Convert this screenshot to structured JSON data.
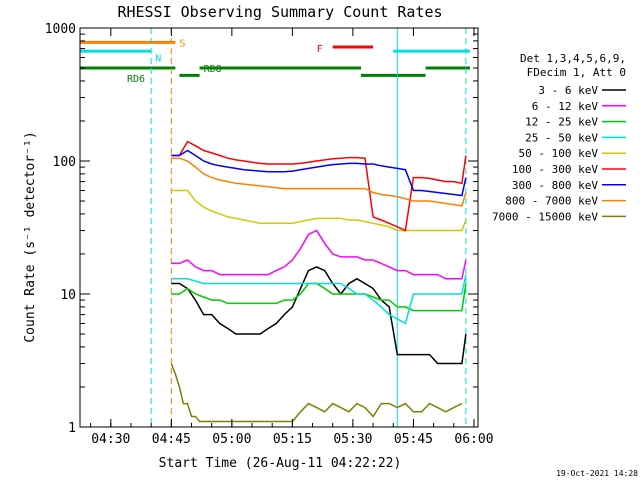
{
  "chart_data": {
    "type": "line",
    "title": "RHESSI Observing Summary Count Rates",
    "xlabel": "Start Time (26-Aug-11 04:22:22)",
    "ylabel": "Count Rate (s⁻¹ detector⁻¹)",
    "y_scale": "log",
    "ylim": [
      1,
      1000
    ],
    "xlim": [
      "04:22:22",
      "06:01:00"
    ],
    "x_ticks": [
      "04:30",
      "04:45",
      "05:00",
      "05:15",
      "05:30",
      "05:45",
      "06:00"
    ],
    "y_ticks": [
      "1",
      "10",
      "100",
      "1000"
    ],
    "legend_header": [
      "Det 1,3,4,5,6,9,",
      "FDecim 1, Att 0"
    ],
    "legend_position": "right",
    "series": [
      {
        "name": "3 - 6 keV",
        "color": "#000000",
        "x": [
          "04:45",
          "04:47",
          "04:49",
          "04:51",
          "04:53",
          "04:55",
          "04:57",
          "04:59",
          "05:01",
          "05:03",
          "05:05",
          "05:07",
          "05:09",
          "05:11",
          "05:13",
          "05:15",
          "05:17",
          "05:19",
          "05:21",
          "05:23",
          "05:25",
          "05:27",
          "05:29",
          "05:31",
          "05:33",
          "05:35",
          "05:37",
          "05:39",
          "05:41",
          "05:43",
          "05:45",
          "05:47",
          "05:49",
          "05:51",
          "05:53",
          "05:55",
          "05:57",
          "05:58"
        ],
        "y": [
          12,
          12,
          11,
          9,
          7,
          7,
          6,
          5.5,
          5,
          5,
          5,
          5,
          5.5,
          6,
          7,
          8,
          11,
          15,
          16,
          15,
          12,
          10,
          12,
          13,
          12,
          11,
          9,
          8,
          3.5,
          3.5,
          3.5,
          3.5,
          3.5,
          3,
          3,
          3,
          3,
          5
        ]
      },
      {
        "name": "6 - 12 keV",
        "color": "#ff00ff",
        "x": [
          "04:45",
          "04:47",
          "04:49",
          "04:51",
          "04:53",
          "04:55",
          "04:57",
          "04:59",
          "05:01",
          "05:03",
          "05:05",
          "05:07",
          "05:09",
          "05:11",
          "05:13",
          "05:15",
          "05:17",
          "05:19",
          "05:21",
          "05:23",
          "05:25",
          "05:27",
          "05:29",
          "05:31",
          "05:33",
          "05:35",
          "05:37",
          "05:39",
          "05:41",
          "05:43",
          "05:45",
          "05:47",
          "05:49",
          "05:51",
          "05:53",
          "05:55",
          "05:57",
          "05:58"
        ],
        "y": [
          17,
          17,
          18,
          16,
          15,
          15,
          14,
          14,
          14,
          14,
          14,
          14,
          14,
          15,
          16,
          18,
          22,
          28,
          30,
          24,
          20,
          19,
          19,
          19,
          18,
          18,
          17,
          16,
          15,
          15,
          14,
          14,
          14,
          14,
          13,
          13,
          13,
          18
        ]
      },
      {
        "name": "12 - 25 keV",
        "color": "#00cc00",
        "x": [
          "04:45",
          "04:47",
          "04:49",
          "04:51",
          "04:53",
          "04:55",
          "04:57",
          "04:59",
          "05:01",
          "05:03",
          "05:05",
          "05:07",
          "05:09",
          "05:11",
          "05:13",
          "05:15",
          "05:17",
          "05:19",
          "05:21",
          "05:23",
          "05:25",
          "05:27",
          "05:29",
          "05:31",
          "05:33",
          "05:35",
          "05:37",
          "05:39",
          "05:41",
          "05:43",
          "05:45",
          "05:47",
          "05:49",
          "05:51",
          "05:53",
          "05:55",
          "05:57",
          "05:58"
        ],
        "y": [
          10,
          10,
          11,
          10,
          9.5,
          9,
          9,
          8.5,
          8.5,
          8.5,
          8.5,
          8.5,
          8.5,
          8.5,
          9,
          9,
          10,
          12,
          12,
          11,
          10,
          10,
          10,
          10,
          10,
          9.5,
          9,
          9,
          8,
          8,
          7.5,
          7.5,
          7.5,
          7.5,
          7.5,
          7.5,
          7.5,
          12
        ]
      },
      {
        "name": "25 - 50 keV",
        "color": "#00e0e0",
        "x": [
          "04:45",
          "04:47",
          "04:49",
          "04:51",
          "04:53",
          "04:55",
          "04:57",
          "04:59",
          "05:01",
          "05:03",
          "05:05",
          "05:07",
          "05:09",
          "05:11",
          "05:13",
          "05:15",
          "05:17",
          "05:19",
          "05:21",
          "05:23",
          "05:25",
          "05:27",
          "05:29",
          "05:31",
          "05:33",
          "05:35",
          "05:37",
          "05:39",
          "05:41",
          "05:43",
          "05:45",
          "05:47",
          "05:49",
          "05:51",
          "05:53",
          "05:55",
          "05:57",
          "05:58"
        ],
        "y": [
          13,
          13,
          13,
          12.5,
          12,
          12,
          12,
          12,
          12,
          12,
          12,
          12,
          12,
          12,
          12,
          12,
          12,
          12,
          12,
          12,
          12,
          12,
          11,
          10,
          10,
          9,
          8,
          7,
          6.5,
          6,
          10,
          10,
          10,
          10,
          10,
          10,
          10,
          14
        ]
      },
      {
        "name": "50 - 100 keV",
        "color": "#d4c800",
        "x": [
          "04:45",
          "04:47",
          "04:49",
          "04:51",
          "04:53",
          "04:55",
          "04:57",
          "04:59",
          "05:01",
          "05:03",
          "05:05",
          "05:07",
          "05:09",
          "05:11",
          "05:13",
          "05:15",
          "05:17",
          "05:19",
          "05:21",
          "05:23",
          "05:25",
          "05:27",
          "05:29",
          "05:31",
          "05:33",
          "05:35",
          "05:37",
          "05:39",
          "05:41",
          "05:43",
          "05:45",
          "05:47",
          "05:49",
          "05:51",
          "05:53",
          "05:55",
          "05:57",
          "05:58"
        ],
        "y": [
          60,
          60,
          60,
          50,
          45,
          42,
          40,
          38,
          37,
          36,
          35,
          34,
          34,
          34,
          34,
          34,
          35,
          36,
          37,
          37,
          37,
          37,
          36,
          36,
          35,
          34,
          33,
          32,
          30,
          30,
          30,
          30,
          30,
          30,
          30,
          30,
          30,
          36
        ]
      },
      {
        "name": "100 - 300 keV",
        "color": "#ff0000",
        "x": [
          "04:45",
          "04:47",
          "04:49",
          "04:51",
          "04:53",
          "04:55",
          "04:57",
          "04:59",
          "05:01",
          "05:03",
          "05:05",
          "05:07",
          "05:09",
          "05:11",
          "05:13",
          "05:15",
          "05:17",
          "05:19",
          "05:21",
          "05:23",
          "05:25",
          "05:27",
          "05:29",
          "05:31",
          "05:33",
          "05:35",
          "05:37",
          "05:39",
          "05:41",
          "05:43",
          "05:45",
          "05:47",
          "05:49",
          "05:51",
          "05:53",
          "05:55",
          "05:57",
          "05:58"
        ],
        "y": [
          110,
          110,
          140,
          130,
          120,
          115,
          110,
          105,
          102,
          100,
          98,
          96,
          95,
          95,
          95,
          95,
          96,
          98,
          100,
          102,
          104,
          105,
          106,
          106,
          105,
          38,
          36,
          34,
          32,
          30,
          75,
          75,
          74,
          72,
          70,
          70,
          68,
          110
        ]
      },
      {
        "name": "300 - 800 keV",
        "color": "#0000ff",
        "x": [
          "04:45",
          "04:47",
          "04:49",
          "04:51",
          "04:53",
          "04:55",
          "04:57",
          "04:59",
          "05:01",
          "05:03",
          "05:05",
          "05:07",
          "05:09",
          "05:11",
          "05:13",
          "05:15",
          "05:17",
          "05:19",
          "05:21",
          "05:23",
          "05:25",
          "05:27",
          "05:29",
          "05:31",
          "05:33",
          "05:35",
          "05:37",
          "05:39",
          "05:41",
          "05:43",
          "05:45",
          "05:47",
          "05:49",
          "05:51",
          "05:53",
          "05:55",
          "05:57",
          "05:58"
        ],
        "y": [
          110,
          110,
          120,
          110,
          100,
          95,
          92,
          90,
          88,
          86,
          85,
          84,
          83,
          83,
          83,
          84,
          86,
          88,
          90,
          92,
          94,
          95,
          96,
          96,
          95,
          95,
          92,
          90,
          88,
          86,
          60,
          60,
          59,
          58,
          57,
          56,
          55,
          75
        ]
      },
      {
        "name": "800 - 7000 keV",
        "color": "#ff8000",
        "x": [
          "04:45",
          "04:47",
          "04:49",
          "04:51",
          "04:53",
          "04:55",
          "04:57",
          "04:59",
          "05:01",
          "05:03",
          "05:05",
          "05:07",
          "05:09",
          "05:11",
          "05:13",
          "05:15",
          "05:17",
          "05:19",
          "05:21",
          "05:23",
          "05:25",
          "05:27",
          "05:29",
          "05:31",
          "05:33",
          "05:35",
          "05:37",
          "05:39",
          "05:41",
          "05:43",
          "05:45",
          "05:47",
          "05:49",
          "05:51",
          "05:53",
          "05:55",
          "05:57",
          "05:58"
        ],
        "y": [
          105,
          105,
          100,
          90,
          80,
          75,
          72,
          70,
          68,
          67,
          66,
          65,
          64,
          63,
          62,
          62,
          62,
          62,
          62,
          62,
          62,
          62,
          62,
          62,
          62,
          58,
          56,
          55,
          54,
          52,
          50,
          50,
          50,
          49,
          48,
          47,
          46,
          58
        ]
      },
      {
        "name": "7000 - 15000 keV",
        "color": "#808000",
        "x": [
          "04:45",
          "04:46",
          "04:47",
          "04:48",
          "04:49",
          "04:50",
          "04:51",
          "04:52",
          "04:53",
          "04:54",
          "05:15",
          "05:17",
          "05:19",
          "05:21",
          "05:23",
          "05:25",
          "05:27",
          "05:29",
          "05:31",
          "05:33",
          "05:35",
          "05:37",
          "05:39",
          "05:41",
          "05:43",
          "05:45",
          "05:47",
          "05:49",
          "05:51",
          "05:53",
          "05:55",
          "05:57"
        ],
        "y": [
          3,
          2.5,
          2,
          1.5,
          1.5,
          1.2,
          1.2,
          1.1,
          1.1,
          1.1,
          1.1,
          1.3,
          1.5,
          1.4,
          1.3,
          1.5,
          1.4,
          1.3,
          1.5,
          1.4,
          1.2,
          1.5,
          1.5,
          1.4,
          1.5,
          1.3,
          1.3,
          1.5,
          1.4,
          1.3,
          1.4,
          1.5
        ]
      }
    ],
    "annotations": [
      "S",
      "N",
      "RD6",
      "RD8",
      "F"
    ],
    "flag_bars": [
      {
        "label": "S",
        "color": "#ff8000",
        "x_start": "04:22:22",
        "x_end": "04:46",
        "y": 780
      },
      {
        "label": "N",
        "color": "#00e0e0",
        "x_start": "04:22:22",
        "x_end": "04:40",
        "y": 670
      },
      {
        "label": "N",
        "color": "#00e0e0",
        "x_start": "05:40",
        "x_end": "05:59",
        "y": 670
      },
      {
        "label": "RD6",
        "color": "#008000",
        "x_start": "04:22:22",
        "x_end": "04:46",
        "y": 500
      },
      {
        "label": "RD6",
        "color": "#008000",
        "x_start": "04:47",
        "x_end": "04:52",
        "y": 440
      },
      {
        "label": "RD8",
        "color": "#008000",
        "x_start": "04:52",
        "x_end": "05:32",
        "y": 500
      },
      {
        "label": "RD8",
        "color": "#008000",
        "x_start": "05:32",
        "x_end": "05:48",
        "y": 440
      },
      {
        "label": "RD8",
        "color": "#008000",
        "x_start": "05:48",
        "x_end": "05:59",
        "y": 500
      },
      {
        "label": "F",
        "color": "#ff0000",
        "x_start": "05:25",
        "x_end": "05:35",
        "y": 720
      }
    ],
    "vlines": [
      {
        "color": "#00e0e0",
        "x": "04:40",
        "style": "dashed"
      },
      {
        "color": "#ff8000",
        "x": "04:45",
        "style": "dashed"
      },
      {
        "color": "#00e0e0",
        "x": "05:41",
        "style": "solid"
      },
      {
        "color": "#00e0e0",
        "x": "05:58",
        "style": "dashed"
      }
    ],
    "grid": false
  },
  "footer_timestamp": "19-Oct-2021 14:28"
}
